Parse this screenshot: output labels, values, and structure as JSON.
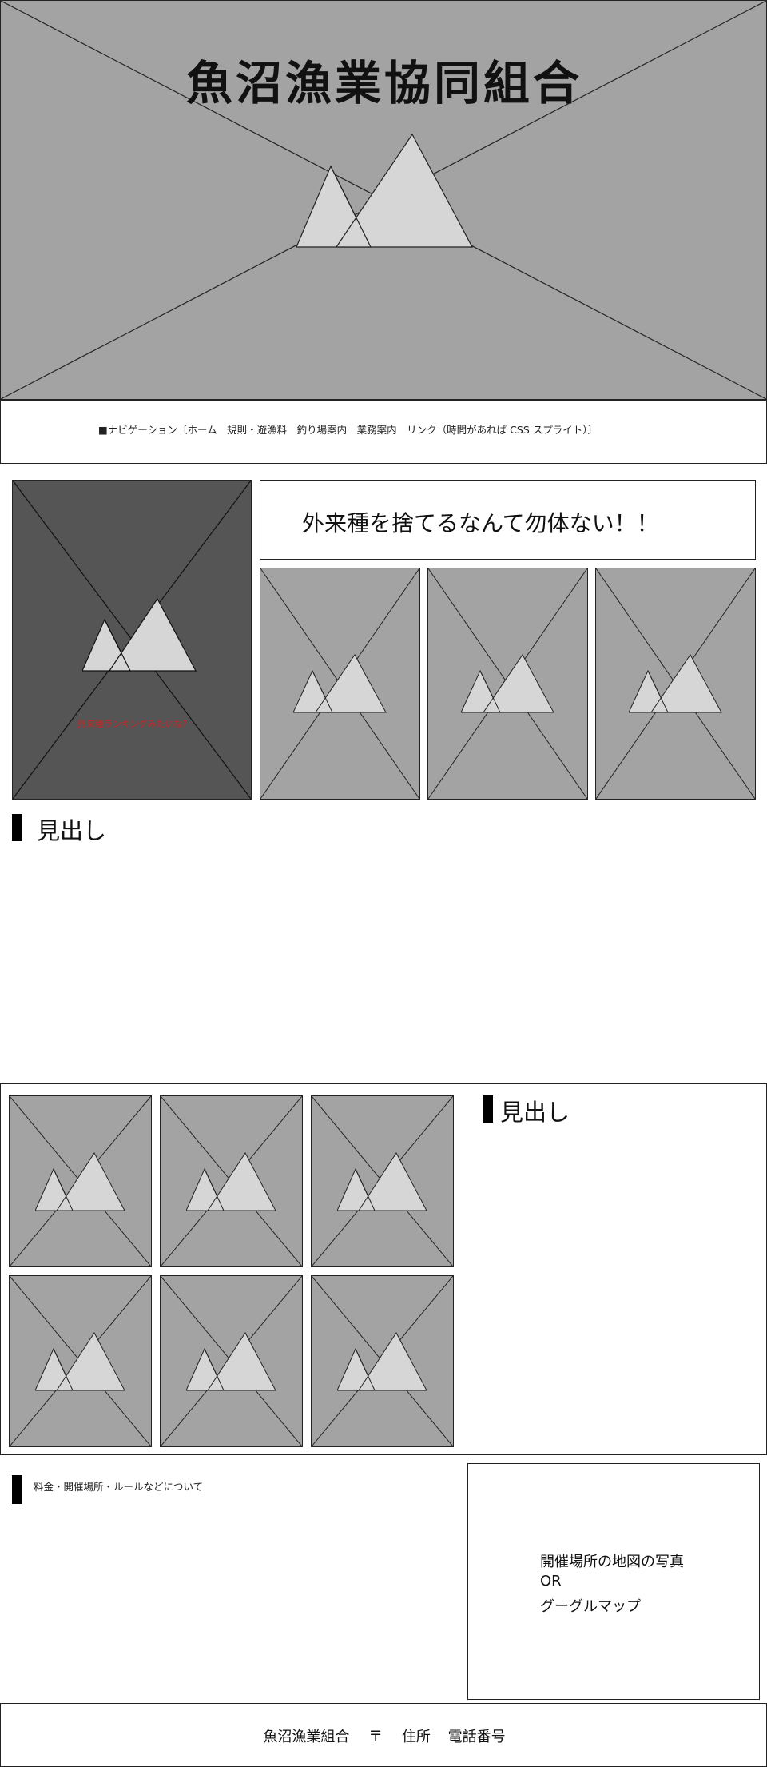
{
  "header": {
    "logo_text": "魚沼漁業協同組合",
    "nav_text": "■ナビゲーション〔ホーム　規則・遊漁料　釣り場案内　業務案内　リンク（時間があれば CSS スプライト）〕"
  },
  "feature": {
    "banner_text": "外来種を捨てるなんて勿体ない！！",
    "caption": "外来種ランキングみたいな?"
  },
  "section1": {
    "heading": "見出し"
  },
  "section2": {
    "heading": "見出し"
  },
  "info": {
    "label": "料金・開催場所・ルールなどについて",
    "map_line1": "開催場所の地図の写真",
    "map_line2": "OR",
    "map_line3": "グーグルマップ"
  },
  "footer": {
    "org": "魚沼漁業組合",
    "postal": "〒",
    "address": "住所",
    "phone": "電話番号"
  },
  "colors": {
    "placeholder_gray": "#a3a3a3",
    "placeholder_dark": "#555555",
    "mountain_fill": "#d6d6d6",
    "caption_red": "#d42020"
  }
}
